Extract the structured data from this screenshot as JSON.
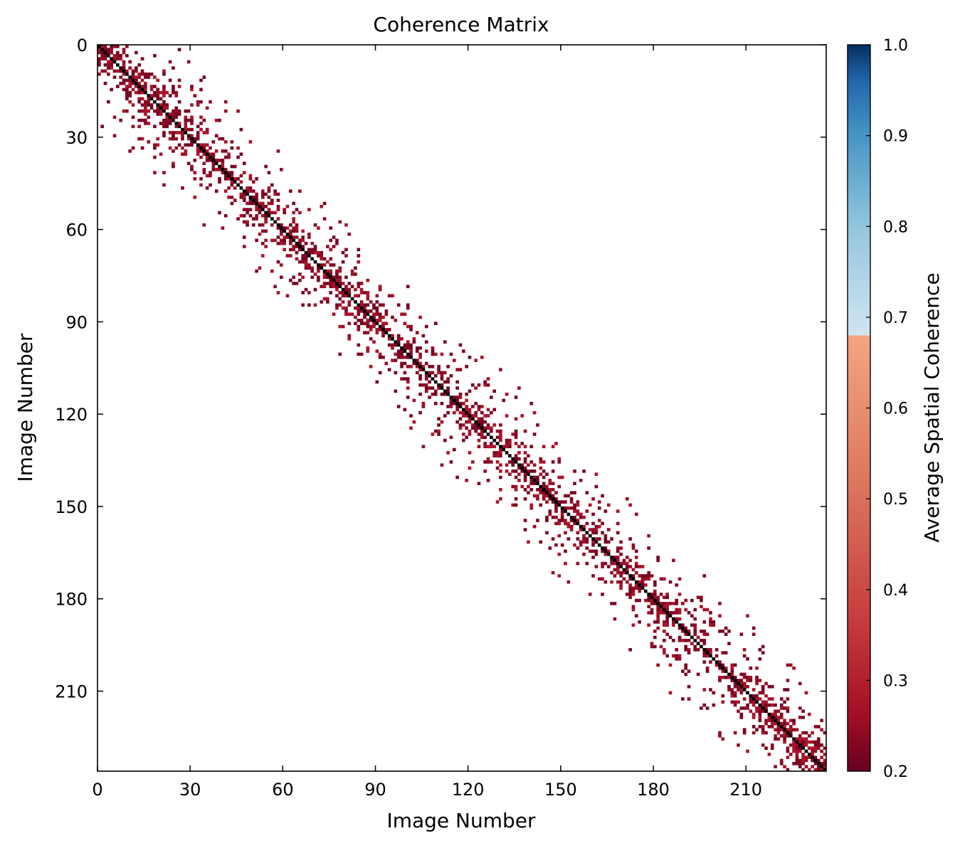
{
  "chart_data": {
    "type": "heatmap",
    "title": "Coherence Matrix",
    "xlabel": "Image Number",
    "ylabel": "Image Number",
    "colorbar_label": "Average Spatial Coherence",
    "n_images": 236,
    "xlim": [
      0,
      236
    ],
    "ylim": [
      236,
      0
    ],
    "x_ticks": [
      0,
      30,
      60,
      90,
      120,
      150,
      180,
      210
    ],
    "y_ticks": [
      0,
      30,
      60,
      90,
      120,
      150,
      180,
      210
    ],
    "colorbar_range": [
      0.2,
      1.0
    ],
    "colorbar_ticks": [
      "0.2",
      "0.3",
      "0.4",
      "0.5",
      "0.6",
      "0.7",
      "0.8",
      "0.9",
      "1.0"
    ],
    "colormap": "RdBu",
    "display_threshold": 0.7,
    "colors": {
      "dark_red": "#67001f",
      "red": "#b2182b",
      "salmon": "#f4a582",
      "light_blue": "#d1e5f0",
      "blue": "#4393c3",
      "dark_blue": "#053061",
      "diagonal": "#000000"
    },
    "diagonal_value": 1.0,
    "off_diagonal_values": "0.2–0.35 (dark red), sparse band within about ±25 images of the diagonal",
    "grid": false
  }
}
